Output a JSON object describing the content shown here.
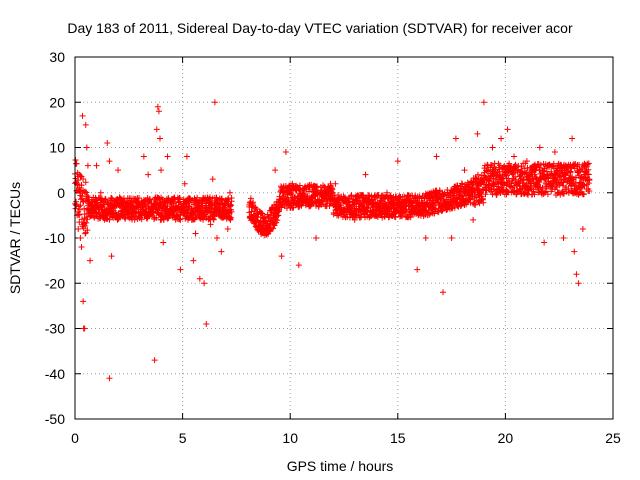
{
  "chart_data": {
    "type": "scatter",
    "title": "Day 183 of 2011, Sidereal Day-to-day VTEC variation (SDTVAR) for receiver acor",
    "xlabel": "GPS time / hours",
    "ylabel": "SDTVAR / TECUs",
    "xlim": [
      0,
      25
    ],
    "ylim": [
      -50,
      30
    ],
    "x_ticks": [
      0,
      5,
      10,
      15,
      20,
      25
    ],
    "y_ticks": [
      -50,
      -40,
      -30,
      -20,
      -10,
      0,
      10,
      20,
      30
    ],
    "x_tick_labels": [
      "0",
      "5",
      "10",
      "15",
      "20",
      "25"
    ],
    "y_tick_labels": [
      "-50",
      "-40",
      "-30",
      "-20",
      "-10",
      "0",
      "10",
      "20",
      "30"
    ],
    "grid": true,
    "marker": "+",
    "color": "#ff0000",
    "series": [
      {
        "name": "SDTVAR",
        "points": [
          [
            0.05,
            -2
          ],
          [
            0.1,
            -5
          ],
          [
            0.15,
            -8
          ],
          [
            0.2,
            4
          ],
          [
            0.25,
            -10
          ],
          [
            0.3,
            -12
          ],
          [
            0.35,
            17
          ],
          [
            0.38,
            -24
          ],
          [
            0.4,
            -30
          ],
          [
            0.45,
            -30
          ],
          [
            0.5,
            15
          ],
          [
            0.55,
            10
          ],
          [
            0.6,
            6
          ],
          [
            0.7,
            -15
          ],
          [
            0.8,
            -2
          ],
          [
            1.0,
            6
          ],
          [
            1.2,
            0
          ],
          [
            1.5,
            11
          ],
          [
            1.6,
            7
          ],
          [
            1.6,
            -41
          ],
          [
            1.7,
            -14
          ],
          [
            2.0,
            5
          ],
          [
            2.2,
            -5
          ],
          [
            3.2,
            8
          ],
          [
            3.4,
            4
          ],
          [
            3.7,
            -37
          ],
          [
            3.8,
            14
          ],
          [
            3.85,
            19
          ],
          [
            3.9,
            18
          ],
          [
            3.95,
            12
          ],
          [
            4.0,
            5
          ],
          [
            4.1,
            -11
          ],
          [
            4.3,
            8
          ],
          [
            4.6,
            -3
          ],
          [
            4.9,
            -17
          ],
          [
            5.1,
            2
          ],
          [
            5.2,
            8
          ],
          [
            5.5,
            -15
          ],
          [
            5.6,
            -9
          ],
          [
            5.8,
            -19
          ],
          [
            6.0,
            -20
          ],
          [
            6.1,
            -29
          ],
          [
            6.3,
            -7
          ],
          [
            6.4,
            3
          ],
          [
            6.5,
            20
          ],
          [
            6.6,
            -10
          ],
          [
            6.8,
            -13
          ],
          [
            7.1,
            -8
          ],
          [
            7.2,
            0
          ],
          [
            9.3,
            5
          ],
          [
            9.6,
            -14
          ],
          [
            9.8,
            9
          ],
          [
            10.1,
            2
          ],
          [
            10.4,
            -16
          ],
          [
            11.2,
            -10
          ],
          [
            12.1,
            2
          ],
          [
            13.0,
            -6
          ],
          [
            13.5,
            4
          ],
          [
            14.0,
            -4
          ],
          [
            14.5,
            0
          ],
          [
            14.7,
            -5
          ],
          [
            15.0,
            7
          ],
          [
            15.5,
            -3
          ],
          [
            15.9,
            -17
          ],
          [
            16.3,
            -10
          ],
          [
            16.8,
            8
          ],
          [
            17.1,
            -22
          ],
          [
            17.5,
            -10
          ],
          [
            17.7,
            12
          ],
          [
            18.1,
            5
          ],
          [
            18.5,
            -6
          ],
          [
            18.7,
            13
          ],
          [
            19.0,
            20
          ],
          [
            19.4,
            10
          ],
          [
            19.8,
            12
          ],
          [
            20.1,
            14
          ],
          [
            20.4,
            8
          ],
          [
            21.0,
            7
          ],
          [
            21.6,
            10
          ],
          [
            21.8,
            -11
          ],
          [
            22.3,
            9
          ],
          [
            22.7,
            -10
          ],
          [
            23.0,
            2
          ],
          [
            23.1,
            12
          ],
          [
            23.2,
            -13
          ],
          [
            23.3,
            -18
          ],
          [
            23.4,
            -20
          ],
          [
            23.6,
            -8
          ]
        ]
      }
    ]
  }
}
